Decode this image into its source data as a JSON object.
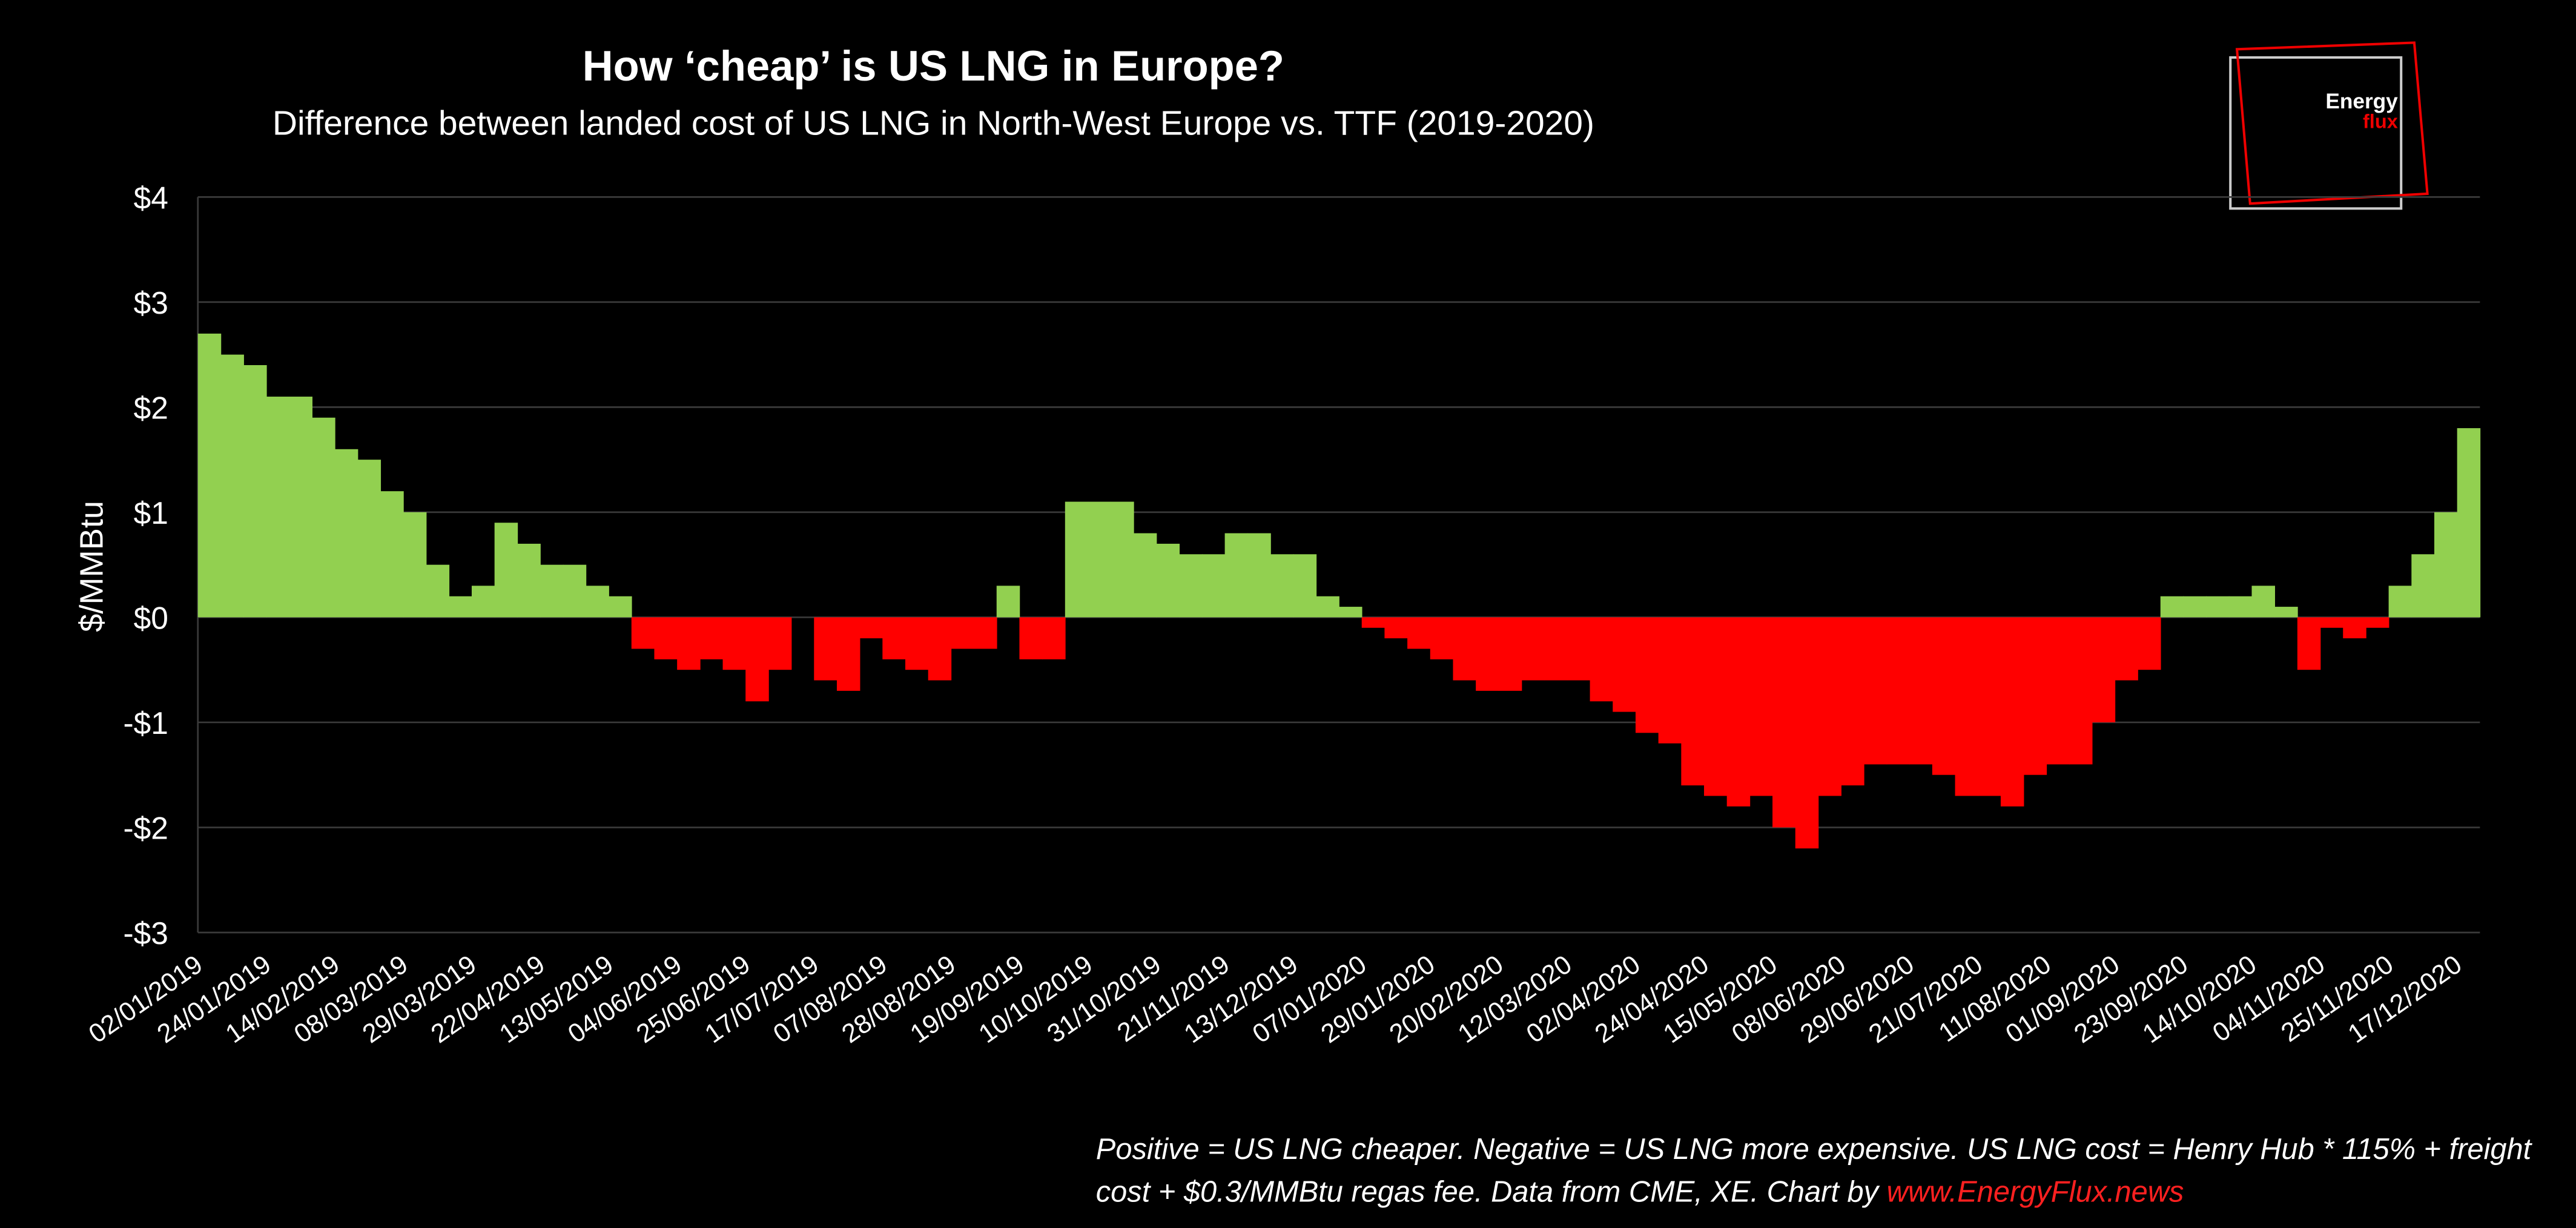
{
  "chart_data": {
    "type": "bar",
    "title": "How ‘cheap’ is US LNG in Europe?",
    "subtitle": "Difference between landed cost of US LNG in North-West Europe vs. TTF (2019-2020)",
    "y_label": "$/MMBtu",
    "note": [
      "Positive = US LNG cheaper. Negative = US LNG more expensive. US LNG cost = Henry Hub * 115% + freight",
      "cost + $0.3/MMBtu regas fee. Data from CME, XE. Chart by "
    ],
    "note_link": "www.EnergyFlux.news",
    "logo": [
      "Energy",
      "flux"
    ],
    "positive_color": "#92d050",
    "negative_color": "#ff0000",
    "grid": true,
    "ylim": [
      -3,
      4
    ],
    "yticks": [
      {
        "value": -3,
        "label": "-$3"
      },
      {
        "value": -2,
        "label": "-$2"
      },
      {
        "value": -1,
        "label": "-$1"
      },
      {
        "value": 0,
        "label": "$0"
      },
      {
        "value": 1,
        "label": "$1"
      },
      {
        "value": 2,
        "label": "$2"
      },
      {
        "value": 3,
        "label": "$3"
      },
      {
        "value": 4,
        "label": "$4"
      }
    ],
    "categories": [
      "02/01/2019",
      null,
      null,
      "24/01/2019",
      null,
      null,
      "14/02/2019",
      null,
      null,
      "08/03/2019",
      null,
      null,
      "29/03/2019",
      null,
      null,
      "22/04/2019",
      null,
      null,
      "13/05/2019",
      null,
      null,
      "04/06/2019",
      null,
      null,
      "25/06/2019",
      null,
      null,
      "17/07/2019",
      null,
      null,
      "07/08/2019",
      null,
      null,
      "28/08/2019",
      null,
      null,
      "19/09/2019",
      null,
      null,
      "10/10/2019",
      null,
      null,
      "31/10/2019",
      null,
      null,
      "21/11/2019",
      null,
      null,
      "13/12/2019",
      null,
      null,
      "07/01/2020",
      null,
      null,
      "29/01/2020",
      null,
      null,
      "20/02/2020",
      null,
      null,
      "12/03/2020",
      null,
      null,
      "02/04/2020",
      null,
      null,
      "24/04/2020",
      null,
      null,
      "15/05/2020",
      null,
      null,
      "08/06/2020",
      null,
      null,
      "29/06/2020",
      null,
      null,
      "21/07/2020",
      null,
      null,
      "11/08/2020",
      null,
      null,
      "01/09/2020",
      null,
      null,
      "23/09/2020",
      null,
      null,
      "14/10/2020",
      null,
      null,
      "04/11/2020",
      null,
      null,
      "25/11/2020",
      null,
      null,
      "17/12/2020"
    ],
    "values": [
      2.7,
      2.5,
      2.4,
      2.1,
      2.1,
      1.9,
      1.6,
      1.5,
      1.2,
      1.0,
      0.5,
      0.2,
      0.3,
      0.9,
      0.7,
      0.5,
      0.5,
      0.3,
      0.2,
      -0.3,
      -0.4,
      -0.5,
      -0.4,
      -0.5,
      -0.8,
      -0.5,
      0.0,
      -0.6,
      -0.7,
      -0.2,
      -0.4,
      -0.5,
      -0.6,
      -0.3,
      -0.3,
      0.3,
      -0.4,
      -0.4,
      1.1,
      1.1,
      1.1,
      0.8,
      0.7,
      0.6,
      0.6,
      0.8,
      0.8,
      0.6,
      0.6,
      0.2,
      0.1,
      -0.1,
      -0.2,
      -0.3,
      -0.4,
      -0.6,
      -0.7,
      -0.7,
      -0.6,
      -0.6,
      -0.6,
      -0.8,
      -0.9,
      -1.1,
      -1.2,
      -1.6,
      -1.7,
      -1.8,
      -1.7,
      -2.0,
      -2.2,
      -1.7,
      -1.6,
      -1.4,
      -1.4,
      -1.4,
      -1.5,
      -1.7,
      -1.7,
      -1.8,
      -1.5,
      -1.4,
      -1.4,
      -1.0,
      -0.6,
      -0.5,
      0.2,
      0.2,
      0.2,
      0.2,
      0.3,
      0.1,
      -0.5,
      -0.1,
      -0.2,
      -0.1,
      0.3,
      0.6,
      1.0,
      1.8
    ]
  }
}
